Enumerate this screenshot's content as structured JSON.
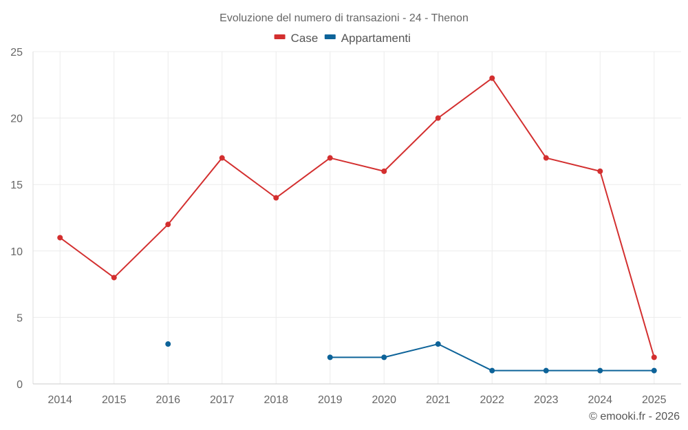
{
  "chart_data": {
    "type": "line",
    "title": "Evoluzione del numero di transazioni - 24 - Thenon",
    "categories": [
      "2014",
      "2015",
      "2016",
      "2017",
      "2018",
      "2019",
      "2020",
      "2021",
      "2022",
      "2023",
      "2024",
      "2025"
    ],
    "series": [
      {
        "name": "Case",
        "color": "#d32f2f",
        "values": [
          11,
          8,
          12,
          17,
          14,
          17,
          16,
          20,
          23,
          17,
          16,
          2
        ]
      },
      {
        "name": "Appartamenti",
        "color": "#0d6399",
        "values": [
          null,
          null,
          3,
          null,
          null,
          2,
          2,
          3,
          1,
          1,
          1,
          1
        ]
      }
    ],
    "ylim": [
      0,
      25
    ],
    "yticks": [
      0,
      5,
      10,
      15,
      20,
      25
    ],
    "xlabel": "",
    "ylabel": "",
    "legend_position": "top-center",
    "grid": true
  },
  "credit": "© emooki.fr - 2026"
}
